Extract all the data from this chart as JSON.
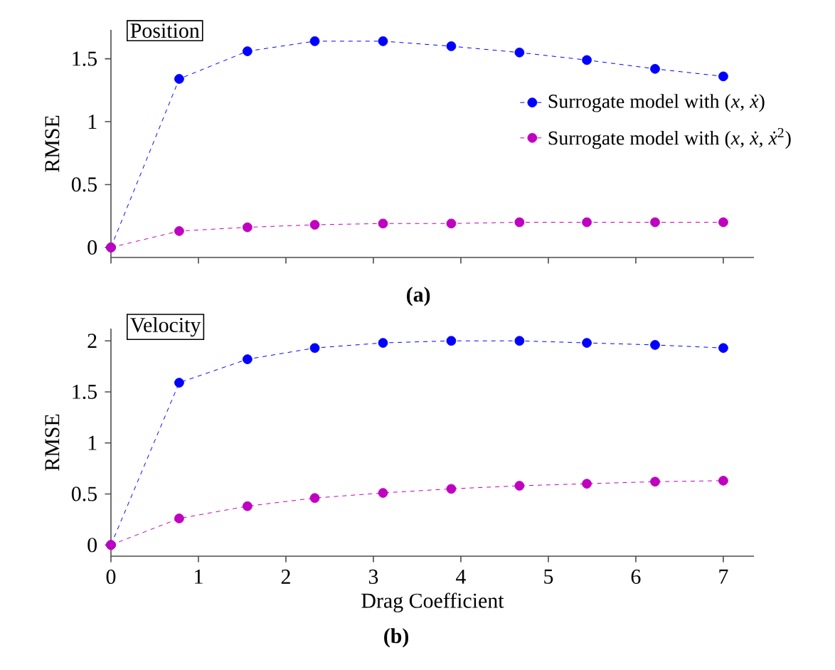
{
  "chart_data": [
    {
      "type": "line",
      "title": "Position",
      "ylabel": "RMSE",
      "annotations": [
        "(a)"
      ],
      "xlim": [
        0,
        7.35
      ],
      "ylim": [
        -0.08,
        1.73
      ],
      "xticks": [
        0,
        1,
        2,
        3,
        4,
        5,
        6,
        7
      ],
      "yticks": [
        0,
        0.5,
        1,
        1.5
      ],
      "tick_labels": "y",
      "legend": "right",
      "marker": "circle",
      "line_style": "dashed",
      "x": [
        0,
        0.78,
        1.56,
        2.33,
        3.11,
        3.89,
        4.67,
        5.44,
        6.22,
        7
      ],
      "series": [
        {
          "name": "Surrogate model with (*x, ẋ*)",
          "color": "#0000ff",
          "values": [
            0,
            1.34,
            1.56,
            1.64,
            1.64,
            1.6,
            1.55,
            1.49,
            1.42,
            1.36
          ]
        },
        {
          "name": "Surrogate model with (*x, ẋ, ẋ*$^{2}$)",
          "color": "#c000c0",
          "values": [
            0,
            0.13,
            0.16,
            0.18,
            0.19,
            0.19,
            0.2,
            0.2,
            0.2,
            0.2
          ]
        }
      ]
    },
    {
      "type": "line",
      "title": "Velocity",
      "xlabel": "Drag Coefficient",
      "ylabel": "RMSE",
      "annotations": [
        "(b)"
      ],
      "xlim": [
        0,
        7.35
      ],
      "ylim": [
        -0.11,
        2.12
      ],
      "xticks": [
        0,
        1,
        2,
        3,
        4,
        5,
        6,
        7
      ],
      "yticks": [
        0,
        0.5,
        1,
        1.5,
        2
      ],
      "marker": "circle",
      "line_style": "dashed",
      "x": [
        0,
        0.78,
        1.56,
        2.33,
        3.11,
        3.89,
        4.67,
        5.44,
        6.22,
        7
      ],
      "series": [
        {
          "color": "#0000ff",
          "values": [
            0,
            1.59,
            1.82,
            1.93,
            1.98,
            2.0,
            2.0,
            1.98,
            1.96,
            1.93
          ]
        },
        {
          "color": "#c000c0",
          "values": [
            0,
            0.26,
            0.38,
            0.46,
            0.51,
            0.55,
            0.58,
            0.6,
            0.62,
            0.63
          ]
        }
      ]
    }
  ]
}
